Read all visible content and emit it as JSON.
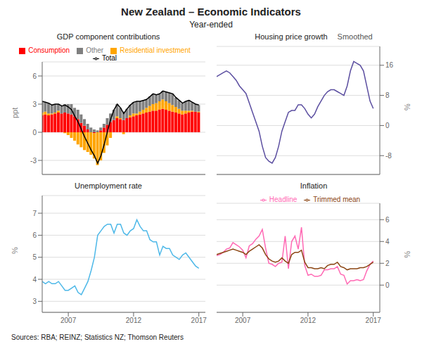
{
  "title": "New Zealand – Economic Indicators",
  "subtitle": "Year-ended",
  "source": "Sources: RBA; REINZ; Statistics NZ; Thomson Reuters",
  "chart_data": [
    {
      "type": "bar",
      "title": "GDP component contributions",
      "stacked": true,
      "x": [
        2005.0,
        2005.25,
        2005.5,
        2005.75,
        2006.0,
        2006.25,
        2006.5,
        2006.75,
        2007.0,
        2007.25,
        2007.5,
        2007.75,
        2008.0,
        2008.25,
        2008.5,
        2008.75,
        2009.0,
        2009.25,
        2009.5,
        2009.75,
        2010.0,
        2010.25,
        2010.5,
        2010.75,
        2011.0,
        2011.25,
        2011.5,
        2011.75,
        2012.0,
        2012.25,
        2012.5,
        2012.75,
        2013.0,
        2013.25,
        2013.5,
        2013.75,
        2014.0,
        2014.25,
        2014.5,
        2014.75,
        2015.0,
        2015.25,
        2015.5,
        2015.75,
        2016.0,
        2016.25,
        2016.5,
        2016.75,
        2017.0
      ],
      "series": [
        {
          "name": "Consumption",
          "type": "bar",
          "color": "#ff0000",
          "values": [
            1.8,
            1.9,
            1.8,
            1.9,
            2.0,
            2.1,
            2.0,
            2.1,
            2.0,
            1.9,
            1.7,
            1.4,
            1.0,
            0.7,
            0.3,
            0.0,
            -0.1,
            0.0,
            0.2,
            0.5,
            0.8,
            1.1,
            1.3,
            1.5,
            1.4,
            1.3,
            1.5,
            1.6,
            1.7,
            1.8,
            1.9,
            2.0,
            2.1,
            2.2,
            2.3,
            2.3,
            2.4,
            2.5,
            2.4,
            2.3,
            2.2,
            2.1,
            2.0,
            1.9,
            2.0,
            2.1,
            2.2,
            2.2,
            2.1
          ]
        },
        {
          "name": "Residential investment",
          "type": "bar",
          "color": "#ffa500",
          "values": [
            0.3,
            0.3,
            0.2,
            0.1,
            0.1,
            0.2,
            0.0,
            -0.1,
            -0.3,
            -0.6,
            -0.9,
            -1.3,
            -1.6,
            -1.9,
            -2.1,
            -2.4,
            -2.7,
            -3.5,
            -3.0,
            -2.2,
            -1.4,
            -0.6,
            0.0,
            0.2,
            0.1,
            -0.2,
            0.0,
            0.2,
            0.3,
            0.2,
            0.3,
            0.4,
            0.5,
            0.6,
            0.7,
            0.8,
            0.9,
            1.0,
            0.9,
            0.8,
            0.7,
            0.6,
            0.5,
            0.4,
            0.3,
            0.2,
            0.1,
            0.0,
            0.1
          ]
        },
        {
          "name": "Other",
          "type": "bar",
          "color": "#808080",
          "values": [
            1.2,
            1.0,
            1.1,
            0.9,
            0.9,
            0.7,
            0.8,
            0.9,
            1.0,
            1.1,
            0.9,
            1.0,
            0.9,
            0.7,
            0.6,
            0.5,
            0.3,
            0.2,
            0.3,
            0.4,
            0.7,
            0.9,
            1.1,
            1.3,
            1.1,
            0.9,
            1.0,
            1.1,
            1.2,
            1.3,
            1.1,
            1.0,
            0.9,
            1.0,
            1.1,
            0.9,
            0.8,
            0.9,
            1.0,
            1.1,
            1.2,
            1.0,
            0.9,
            0.8,
            1.0,
            1.1,
            0.9,
            0.8,
            0.7
          ]
        },
        {
          "name": "Total",
          "type": "line",
          "color": "#000000",
          "values": [
            3.3,
            3.2,
            3.1,
            2.9,
            3.0,
            3.0,
            2.8,
            2.9,
            2.7,
            2.4,
            1.7,
            1.1,
            0.3,
            -0.5,
            -1.2,
            -1.9,
            -2.5,
            -3.3,
            -2.5,
            -1.3,
            0.1,
            1.4,
            2.4,
            3.0,
            2.6,
            2.0,
            2.5,
            2.9,
            3.2,
            3.3,
            3.3,
            3.4,
            3.5,
            3.8,
            4.1,
            4.0,
            4.1,
            4.4,
            4.3,
            4.2,
            4.1,
            3.7,
            3.4,
            3.1,
            3.3,
            3.4,
            3.2,
            3.0,
            2.9
          ]
        }
      ],
      "xlim": [
        2005.0,
        2017.5
      ],
      "xticks": [
        2007,
        2012,
        2017
      ],
      "ylim": [
        -4.5,
        7.5
      ],
      "yticks": [
        -3,
        0,
        3,
        6
      ],
      "ylabel": "ppt",
      "grid": true,
      "tick_labels": "y",
      "legend": "top"
    },
    {
      "type": "line",
      "title": "Housing price growth",
      "annotations": [
        "Smoothed"
      ],
      "x": [
        2005.0,
        2005.25,
        2005.5,
        2005.75,
        2006.0,
        2006.25,
        2006.5,
        2006.75,
        2007.0,
        2007.25,
        2007.5,
        2007.75,
        2008.0,
        2008.25,
        2008.5,
        2008.75,
        2009.0,
        2009.25,
        2009.5,
        2009.75,
        2010.0,
        2010.25,
        2010.5,
        2010.75,
        2011.0,
        2011.25,
        2011.5,
        2011.75,
        2012.0,
        2012.25,
        2012.5,
        2012.75,
        2013.0,
        2013.25,
        2013.5,
        2013.75,
        2014.0,
        2014.25,
        2014.5,
        2014.75,
        2015.0,
        2015.25,
        2015.5,
        2015.75,
        2016.0,
        2016.25,
        2016.5,
        2016.75,
        2017.0
      ],
      "color": "#5b4ea0",
      "values": [
        13.0,
        13.5,
        14.0,
        14.5,
        14.0,
        13.0,
        12.0,
        10.5,
        9.5,
        8.5,
        6.0,
        3.5,
        1.0,
        -1.5,
        -5.5,
        -8.5,
        -9.5,
        -10.0,
        -8.5,
        -5.5,
        -1.5,
        1.0,
        3.5,
        4.0,
        4.0,
        5.5,
        5.5,
        4.5,
        3.0,
        2.0,
        3.0,
        5.0,
        6.5,
        8.0,
        9.0,
        9.5,
        9.5,
        9.0,
        8.5,
        8.0,
        10.5,
        14.5,
        17.0,
        16.5,
        16.0,
        14.5,
        10.5,
        6.5,
        4.5
      ],
      "xlim": [
        2005.0,
        2017.5
      ],
      "xticks": [
        2007,
        2012,
        2017
      ],
      "ylim": [
        -13,
        21
      ],
      "yticks": [
        -8,
        0,
        8,
        16
      ],
      "ylabel": "%",
      "grid": true,
      "tick_labels": "y"
    },
    {
      "type": "line",
      "title": "Unemployment rate",
      "x": [
        2005.0,
        2005.25,
        2005.5,
        2005.75,
        2006.0,
        2006.25,
        2006.5,
        2006.75,
        2007.0,
        2007.25,
        2007.5,
        2007.75,
        2008.0,
        2008.25,
        2008.5,
        2008.75,
        2009.0,
        2009.25,
        2009.5,
        2009.75,
        2010.0,
        2010.25,
        2010.5,
        2010.75,
        2011.0,
        2011.25,
        2011.5,
        2011.75,
        2012.0,
        2012.25,
        2012.5,
        2012.75,
        2013.0,
        2013.25,
        2013.5,
        2013.75,
        2014.0,
        2014.25,
        2014.5,
        2014.75,
        2015.0,
        2015.25,
        2015.5,
        2015.75,
        2016.0,
        2016.25,
        2016.5,
        2016.75,
        2017.0
      ],
      "color": "#4db8e8",
      "values": [
        3.9,
        3.8,
        3.9,
        3.8,
        3.8,
        3.9,
        3.7,
        3.5,
        3.5,
        3.6,
        3.7,
        3.4,
        3.3,
        3.6,
        3.9,
        4.4,
        5.0,
        6.0,
        6.2,
        6.4,
        6.5,
        6.5,
        6.1,
        6.5,
        6.5,
        6.1,
        6.0,
        6.2,
        6.3,
        6.7,
        6.4,
        6.2,
        6.2,
        5.8,
        5.7,
        5.7,
        5.1,
        5.5,
        5.4,
        5.4,
        5.1,
        5.0,
        4.9,
        5.1,
        5.2,
        5.0,
        4.8,
        4.6,
        4.5
      ],
      "xlim": [
        2005.0,
        2017.5
      ],
      "xticks": [
        2007,
        2012,
        2017
      ],
      "ylim": [
        2.5,
        7.8
      ],
      "yticks": [
        3,
        4,
        5,
        6,
        7
      ],
      "ylabel": "%",
      "grid": true
    },
    {
      "type": "line",
      "title": "Inflation",
      "x": [
        2005.0,
        2005.25,
        2005.5,
        2005.75,
        2006.0,
        2006.25,
        2006.5,
        2006.75,
        2007.0,
        2007.25,
        2007.5,
        2007.75,
        2008.0,
        2008.25,
        2008.5,
        2008.75,
        2009.0,
        2009.25,
        2009.5,
        2009.75,
        2010.0,
        2010.25,
        2010.5,
        2010.75,
        2011.0,
        2011.25,
        2011.5,
        2011.75,
        2012.0,
        2012.25,
        2012.5,
        2012.75,
        2013.0,
        2013.25,
        2013.5,
        2013.75,
        2014.0,
        2014.25,
        2014.5,
        2014.75,
        2015.0,
        2015.25,
        2015.5,
        2015.75,
        2016.0,
        2016.25,
        2016.5,
        2016.75,
        2017.0
      ],
      "series": [
        {
          "name": "Headline",
          "color": "#ff69b4",
          "values": [
            2.7,
            2.8,
            3.0,
            3.3,
            3.4,
            3.9,
            3.7,
            3.5,
            3.2,
            2.5,
            3.6,
            3.8,
            4.2,
            4.5,
            5.1,
            3.4,
            2.0,
            1.9,
            1.7,
            2.0,
            2.1,
            4.5,
            1.5,
            4.0,
            4.5,
            3.3,
            5.3,
            1.8,
            0.9,
            1.0,
            0.8,
            0.8,
            0.9,
            1.4,
            1.4,
            1.5,
            1.5,
            1.7,
            1.0,
            0.9,
            0.1,
            0.4,
            0.4,
            0.5,
            0.4,
            0.5,
            1.3,
            1.9,
            2.2
          ]
        },
        {
          "name": "Trimmed mean",
          "color": "#8b4513",
          "values": [
            2.8,
            2.9,
            3.0,
            3.1,
            3.2,
            3.3,
            3.2,
            3.1,
            3.0,
            2.8,
            3.1,
            3.3,
            3.5,
            3.7,
            3.4,
            2.8,
            2.4,
            2.2,
            2.1,
            2.2,
            2.5,
            2.2,
            2.0,
            2.8,
            3.0,
            3.0,
            3.2,
            2.1,
            1.6,
            1.6,
            1.5,
            1.5,
            1.6,
            1.5,
            1.8,
            1.9,
            1.9,
            2.1,
            1.7,
            1.6,
            1.4,
            1.5,
            1.5,
            1.5,
            1.6,
            1.6,
            1.7,
            1.9,
            2.1
          ]
        }
      ],
      "xlim": [
        2005.0,
        2017.5
      ],
      "xticks": [
        2007,
        2012,
        2017
      ],
      "ylim": [
        -2.5,
        7.5
      ],
      "yticks": [
        0,
        2,
        4,
        6
      ],
      "ylabel": "%",
      "grid": true,
      "legend": "top"
    }
  ]
}
